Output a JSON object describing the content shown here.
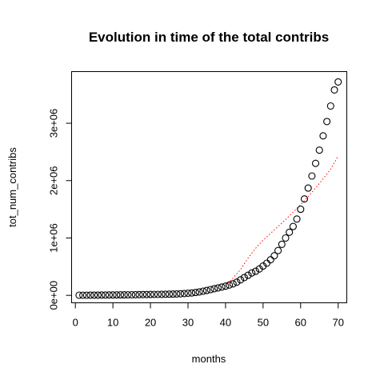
{
  "chart_data": {
    "type": "scatter",
    "title": "Evolution in time of the total contribs",
    "xlabel": "months",
    "ylabel": "tot_num_contribs",
    "xlim": [
      -1,
      72.3
    ],
    "ylim": [
      -130000,
      3900000
    ],
    "x_ticks": [
      0,
      10,
      20,
      30,
      40,
      50,
      60,
      70
    ],
    "x_tick_labels": [
      "0",
      "10",
      "20",
      "30",
      "40",
      "50",
      "60",
      "70"
    ],
    "y_ticks": [
      0,
      1000000,
      2000000,
      3000000
    ],
    "y_tick_labels": [
      "0e+00",
      "1e+06",
      "2e+06",
      "3e+06"
    ],
    "grid": false,
    "series": [
      {
        "kind": "points",
        "color": "#000000",
        "x": [
          1,
          2,
          3,
          4,
          5,
          6,
          7,
          8,
          9,
          10,
          11,
          12,
          13,
          14,
          15,
          16,
          17,
          18,
          19,
          20,
          21,
          22,
          23,
          24,
          25,
          26,
          27,
          28,
          29,
          30,
          31,
          32,
          33,
          34,
          35,
          36,
          37,
          38,
          39,
          40,
          41,
          42,
          43,
          44,
          45,
          46,
          47,
          48,
          49,
          50,
          51,
          52,
          53,
          54,
          55,
          56,
          57,
          58,
          59,
          60,
          61,
          62,
          63,
          64,
          65,
          66,
          67,
          68,
          69,
          70
        ],
        "values": [
          2000,
          2500,
          3000,
          3500,
          4000,
          4500,
          5000,
          5500,
          6000,
          6500,
          7000,
          7500,
          8000,
          9000,
          10000,
          11000,
          12000,
          13000,
          14000,
          15000,
          16000,
          17000,
          18000,
          19000,
          20000,
          22000,
          25000,
          28000,
          32000,
          37000,
          42000,
          50000,
          60000,
          72000,
          85000,
          100000,
          115000,
          130000,
          145000,
          160000,
          180000,
          200000,
          230000,
          270000,
          310000,
          350000,
          390000,
          420000,
          460000,
          510000,
          560000,
          620000,
          690000,
          780000,
          890000,
          1000000,
          1100000,
          1200000,
          1330000,
          1500000,
          1680000,
          1870000,
          2080000,
          2300000,
          2530000,
          2780000,
          3030000,
          3300000,
          3580000,
          3720000
        ]
      },
      {
        "kind": "line",
        "color": "#ff0000",
        "x": [
          40,
          42,
          44,
          46,
          48,
          50,
          52,
          54,
          56,
          58,
          60,
          62,
          64,
          66,
          68,
          70
        ],
        "values": [
          170000,
          300000,
          450000,
          650000,
          820000,
          960000,
          1080000,
          1200000,
          1320000,
          1450000,
          1580000,
          1720000,
          1870000,
          2030000,
          2200000,
          2430000
        ]
      }
    ]
  }
}
